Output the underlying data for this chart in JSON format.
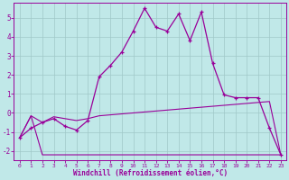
{
  "xlabel": "Windchill (Refroidissement éolien,°C)",
  "background_color": "#c0e8e8",
  "grid_color": "#a0c8c8",
  "line_color": "#990099",
  "xlim": [
    -0.5,
    23.5
  ],
  "ylim": [
    -2.5,
    5.8
  ],
  "yticks": [
    -2,
    -1,
    0,
    1,
    2,
    3,
    4,
    5
  ],
  "xticks": [
    0,
    1,
    2,
    3,
    4,
    5,
    6,
    7,
    8,
    9,
    10,
    11,
    12,
    13,
    14,
    15,
    16,
    17,
    18,
    19,
    20,
    21,
    22,
    23
  ],
  "series": {
    "line1_x": [
      0,
      1,
      2,
      3,
      4,
      5,
      6,
      7,
      8,
      9,
      10,
      11,
      12,
      13,
      14,
      15,
      16,
      17,
      18,
      19,
      20,
      21,
      22,
      23
    ],
    "line1_y": [
      -1.3,
      -0.15,
      -2.2,
      -2.2,
      -2.2,
      -2.2,
      -2.2,
      -2.2,
      -2.2,
      -2.2,
      -2.2,
      -2.2,
      -2.2,
      -2.2,
      -2.2,
      -2.2,
      -2.2,
      -2.2,
      -2.2,
      -2.2,
      -2.2,
      -2.2,
      -2.2,
      -2.2
    ],
    "line2_x": [
      0,
      1,
      2,
      3,
      4,
      5,
      6,
      7,
      8,
      9,
      10,
      11,
      12,
      13,
      14,
      15,
      16,
      17,
      18,
      19,
      20,
      21,
      22,
      23
    ],
    "line2_y": [
      -1.3,
      -0.15,
      -0.5,
      -0.2,
      -0.3,
      -0.4,
      -0.3,
      -0.15,
      -0.1,
      -0.05,
      0.0,
      0.05,
      0.1,
      0.15,
      0.2,
      0.25,
      0.3,
      0.35,
      0.4,
      0.45,
      0.5,
      0.55,
      0.6,
      -2.2
    ],
    "line3_x": [
      0,
      1,
      2,
      3,
      4,
      5,
      6,
      7,
      8,
      9,
      10,
      11,
      12,
      13,
      14,
      15,
      16,
      17,
      18,
      19,
      20,
      21,
      22,
      23
    ],
    "line3_y": [
      -1.3,
      -0.8,
      -0.5,
      -0.3,
      -0.7,
      -0.9,
      -0.4,
      1.9,
      2.5,
      3.2,
      4.3,
      5.5,
      4.5,
      4.3,
      5.2,
      3.8,
      5.3,
      2.6,
      0.95,
      0.8,
      0.8,
      0.8,
      -0.8,
      -2.2
    ]
  }
}
